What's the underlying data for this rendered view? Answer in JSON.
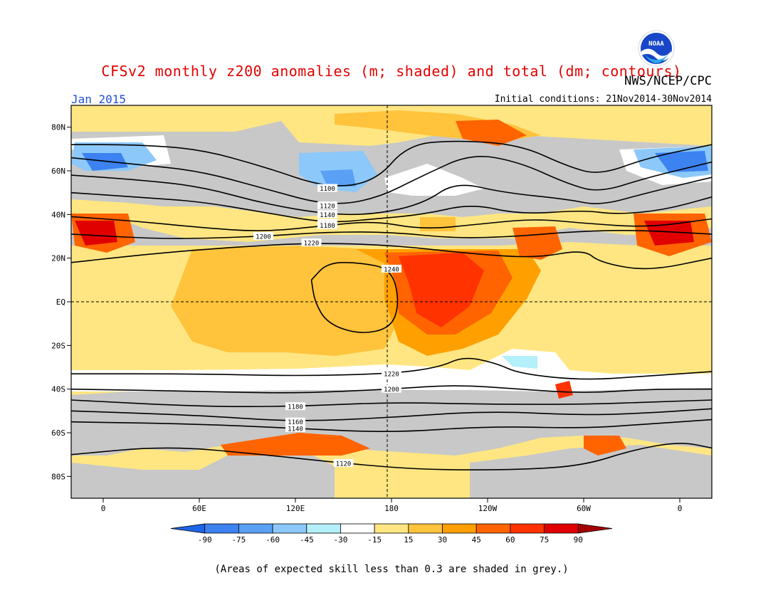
{
  "title": "CFSv2 monthly z200 anomalies (m; shaded) and total (dm; contours)",
  "agency": "NWS/NCEP/CPC",
  "logo_text": "NOAA",
  "month": "Jan 2015",
  "initial_conditions": "Initial conditions: 21Nov2014-30Nov2014",
  "footnote": "(Areas of expected skill less than 0.3 are shaded in grey.)",
  "map": {
    "lat_labels": [
      "80N",
      "60N",
      "40N",
      "20N",
      "EQ",
      "20S",
      "40S",
      "60S",
      "80S"
    ],
    "lat_values": [
      80,
      60,
      40,
      20,
      0,
      -20,
      -40,
      -60,
      -80
    ],
    "lon_labels": [
      "0",
      "60E",
      "120E",
      "180",
      "120W",
      "60W",
      "0"
    ],
    "lon_values": [
      0,
      60,
      120,
      180,
      240,
      300,
      360
    ],
    "lon_range": [
      -20,
      380
    ],
    "lat_range": [
      -90,
      90
    ],
    "contours": [
      {
        "label": "1100",
        "pts": [
          [
            -20,
            72
          ],
          [
            20,
            72
          ],
          [
            60,
            70
          ],
          [
            100,
            62
          ],
          [
            140,
            52
          ],
          [
            170,
            55
          ],
          [
            190,
            72
          ],
          [
            220,
            74
          ],
          [
            260,
            72
          ],
          [
            290,
            62
          ],
          [
            310,
            58
          ],
          [
            340,
            66
          ],
          [
            380,
            72
          ]
        ]
      },
      {
        "label": "1120",
        "pts": [
          [
            -20,
            66
          ],
          [
            20,
            63
          ],
          [
            60,
            60
          ],
          [
            100,
            52
          ],
          [
            140,
            44
          ],
          [
            170,
            47
          ],
          [
            200,
            58
          ],
          [
            230,
            68
          ],
          [
            260,
            64
          ],
          [
            290,
            54
          ],
          [
            310,
            50
          ],
          [
            340,
            57
          ],
          [
            380,
            64
          ]
        ]
      },
      {
        "label": "1140",
        "pts": [
          [
            -20,
            58
          ],
          [
            20,
            56
          ],
          [
            60,
            53
          ],
          [
            100,
            45
          ],
          [
            140,
            40
          ],
          [
            170,
            40
          ],
          [
            200,
            45
          ],
          [
            220,
            55
          ],
          [
            250,
            50
          ],
          [
            290,
            47
          ],
          [
            310,
            44
          ],
          [
            340,
            50
          ],
          [
            380,
            57
          ]
        ]
      },
      {
        "label": "1160",
        "pts": [
          [
            -20,
            50
          ],
          [
            20,
            48
          ],
          [
            60,
            46
          ],
          [
            100,
            41
          ],
          [
            140,
            36
          ],
          [
            170,
            38
          ],
          [
            200,
            40
          ],
          [
            230,
            45
          ],
          [
            260,
            40
          ],
          [
            300,
            42
          ],
          [
            320,
            40
          ],
          [
            350,
            42
          ],
          [
            380,
            48
          ]
        ]
      },
      {
        "label": "1180",
        "pts": [
          [
            -20,
            39
          ],
          [
            20,
            37
          ],
          [
            60,
            34
          ],
          [
            100,
            32
          ],
          [
            140,
            35
          ],
          [
            170,
            37
          ],
          [
            200,
            33
          ],
          [
            240,
            36
          ],
          [
            270,
            38
          ],
          [
            300,
            36
          ],
          [
            340,
            34
          ],
          [
            380,
            38
          ]
        ]
      },
      {
        "label": "1200",
        "pts": [
          [
            -20,
            31
          ],
          [
            30,
            29
          ],
          [
            60,
            29
          ],
          [
            100,
            30
          ],
          [
            140,
            32
          ],
          [
            180,
            32
          ],
          [
            220,
            29
          ],
          [
            260,
            30
          ],
          [
            290,
            32
          ],
          [
            330,
            33
          ],
          [
            380,
            31
          ]
        ]
      },
      {
        "label": "1220",
        "pts": [
          [
            -20,
            18
          ],
          [
            30,
            22
          ],
          [
            80,
            25
          ],
          [
            130,
            27
          ],
          [
            180,
            26
          ],
          [
            230,
            22
          ],
          [
            270,
            20
          ],
          [
            300,
            24
          ],
          [
            310,
            18
          ],
          [
            340,
            14
          ],
          [
            380,
            20
          ]
        ]
      },
      {
        "label": "1240",
        "pts": [
          [
            130,
            10
          ],
          [
            140,
            18
          ],
          [
            160,
            18
          ],
          [
            180,
            15
          ],
          [
            185,
            0
          ],
          [
            180,
            -12
          ],
          [
            160,
            -15
          ],
          [
            140,
            -10
          ],
          [
            132,
            0
          ],
          [
            130,
            10
          ]
        ]
      },
      {
        "label": "1220",
        "pts": [
          [
            -20,
            -33
          ],
          [
            60,
            -33
          ],
          [
            120,
            -34
          ],
          [
            180,
            -33
          ],
          [
            210,
            -30
          ],
          [
            225,
            -25
          ],
          [
            245,
            -28
          ],
          [
            260,
            -33
          ],
          [
            300,
            -36
          ],
          [
            340,
            -34
          ],
          [
            380,
            -32
          ]
        ]
      },
      {
        "label": "1200",
        "pts": [
          [
            -20,
            -40
          ],
          [
            60,
            -41
          ],
          [
            120,
            -42
          ],
          [
            180,
            -40
          ],
          [
            220,
            -38
          ],
          [
            260,
            -40
          ],
          [
            300,
            -42
          ],
          [
            340,
            -40
          ],
          [
            380,
            -40
          ]
        ]
      },
      {
        "label": "1180",
        "pts": [
          [
            -20,
            -45
          ],
          [
            60,
            -48
          ],
          [
            120,
            -48
          ],
          [
            180,
            -46
          ],
          [
            240,
            -47
          ],
          [
            300,
            -47
          ],
          [
            340,
            -46
          ],
          [
            380,
            -45
          ]
        ]
      },
      {
        "label": "1160",
        "pts": [
          [
            -20,
            -50
          ],
          [
            60,
            -52
          ],
          [
            120,
            -55
          ],
          [
            180,
            -53
          ],
          [
            240,
            -50
          ],
          [
            300,
            -52
          ],
          [
            340,
            -51
          ],
          [
            380,
            -49
          ]
        ]
      },
      {
        "label": "1140",
        "pts": [
          [
            -20,
            -55
          ],
          [
            60,
            -56
          ],
          [
            120,
            -58
          ],
          [
            180,
            -60
          ],
          [
            240,
            -57
          ],
          [
            300,
            -58
          ],
          [
            340,
            -56
          ],
          [
            380,
            -54
          ]
        ]
      },
      {
        "label": "1120",
        "pts": [
          [
            -20,
            -70
          ],
          [
            40,
            -66
          ],
          [
            100,
            -70
          ],
          [
            150,
            -74
          ],
          [
            200,
            -77
          ],
          [
            260,
            -77
          ],
          [
            300,
            -75
          ],
          [
            330,
            -68
          ],
          [
            360,
            -64
          ],
          [
            380,
            -67
          ]
        ]
      }
    ]
  },
  "colorbar": {
    "ticks": [
      "-90",
      "-75",
      "-60",
      "-45",
      "-30",
      "-15",
      "15",
      "30",
      "45",
      "60",
      "75",
      "90"
    ],
    "colors": [
      "#1e64e6",
      "#3c82f0",
      "#5aa0f5",
      "#8cc8fa",
      "#b4f0fa",
      "#ffffff",
      "#ffe682",
      "#ffc33c",
      "#ffa000",
      "#ff6400",
      "#ff3200",
      "#e10000",
      "#a50000"
    ]
  },
  "colors": {
    "grey": "#c8c8c8",
    "yellow": "#ffe682",
    "orange": "#ffc33c",
    "dark_orange": "#ffa000",
    "red_orange": "#ff6400",
    "red": "#e10000",
    "light_blue": "#b4f0fa",
    "mid_blue": "#8cc8fa",
    "blue": "#3c82f0"
  }
}
